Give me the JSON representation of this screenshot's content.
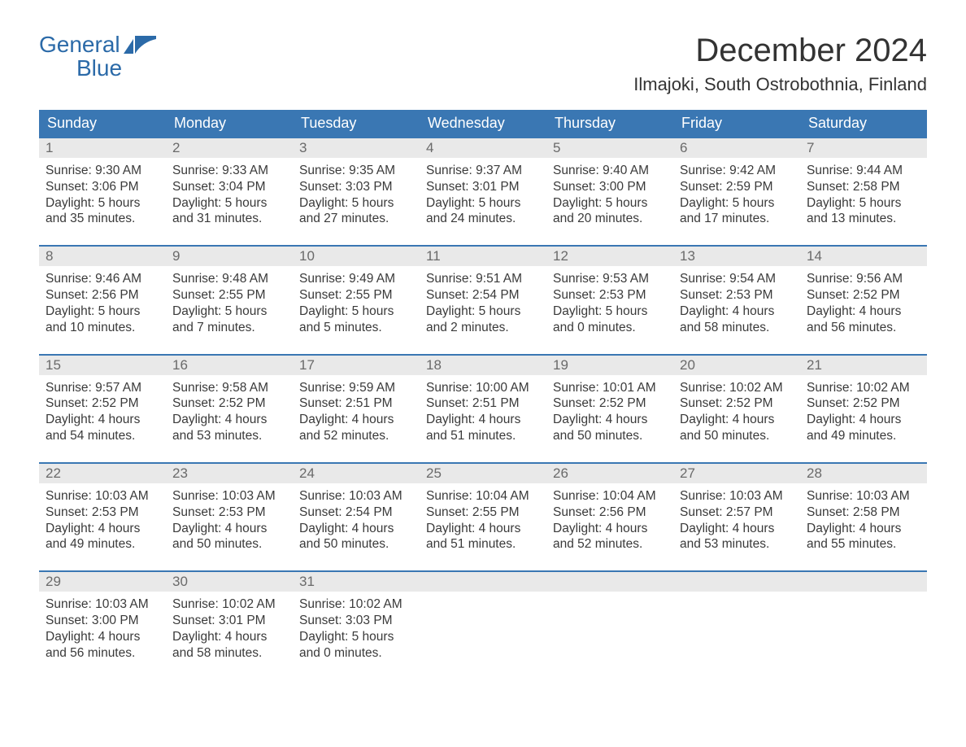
{
  "brand": {
    "word1": "General",
    "word2": "Blue",
    "color": "#2b6aa8"
  },
  "header": {
    "month_title": "December 2024",
    "location": "Ilmajoki, South Ostrobothnia, Finland"
  },
  "calendar": {
    "header_bg": "#3a77b3",
    "header_fg": "#ffffff",
    "daynum_bg": "#e9e9e9",
    "daynum_fg": "#6a6a6a",
    "border_color": "#3a77b3",
    "text_color": "#3a3a3a",
    "day_names": [
      "Sunday",
      "Monday",
      "Tuesday",
      "Wednesday",
      "Thursday",
      "Friday",
      "Saturday"
    ],
    "weeks": [
      {
        "days": [
          {
            "n": "1",
            "sunrise": "9:30 AM",
            "sunset": "3:06 PM",
            "dl1": "5 hours",
            "dl2": "and 35 minutes."
          },
          {
            "n": "2",
            "sunrise": "9:33 AM",
            "sunset": "3:04 PM",
            "dl1": "5 hours",
            "dl2": "and 31 minutes."
          },
          {
            "n": "3",
            "sunrise": "9:35 AM",
            "sunset": "3:03 PM",
            "dl1": "5 hours",
            "dl2": "and 27 minutes."
          },
          {
            "n": "4",
            "sunrise": "9:37 AM",
            "sunset": "3:01 PM",
            "dl1": "5 hours",
            "dl2": "and 24 minutes."
          },
          {
            "n": "5",
            "sunrise": "9:40 AM",
            "sunset": "3:00 PM",
            "dl1": "5 hours",
            "dl2": "and 20 minutes."
          },
          {
            "n": "6",
            "sunrise": "9:42 AM",
            "sunset": "2:59 PM",
            "dl1": "5 hours",
            "dl2": "and 17 minutes."
          },
          {
            "n": "7",
            "sunrise": "9:44 AM",
            "sunset": "2:58 PM",
            "dl1": "5 hours",
            "dl2": "and 13 minutes."
          }
        ]
      },
      {
        "days": [
          {
            "n": "8",
            "sunrise": "9:46 AM",
            "sunset": "2:56 PM",
            "dl1": "5 hours",
            "dl2": "and 10 minutes."
          },
          {
            "n": "9",
            "sunrise": "9:48 AM",
            "sunset": "2:55 PM",
            "dl1": "5 hours",
            "dl2": "and 7 minutes."
          },
          {
            "n": "10",
            "sunrise": "9:49 AM",
            "sunset": "2:55 PM",
            "dl1": "5 hours",
            "dl2": "and 5 minutes."
          },
          {
            "n": "11",
            "sunrise": "9:51 AM",
            "sunset": "2:54 PM",
            "dl1": "5 hours",
            "dl2": "and 2 minutes."
          },
          {
            "n": "12",
            "sunrise": "9:53 AM",
            "sunset": "2:53 PM",
            "dl1": "5 hours",
            "dl2": "and 0 minutes."
          },
          {
            "n": "13",
            "sunrise": "9:54 AM",
            "sunset": "2:53 PM",
            "dl1": "4 hours",
            "dl2": "and 58 minutes."
          },
          {
            "n": "14",
            "sunrise": "9:56 AM",
            "sunset": "2:52 PM",
            "dl1": "4 hours",
            "dl2": "and 56 minutes."
          }
        ]
      },
      {
        "days": [
          {
            "n": "15",
            "sunrise": "9:57 AM",
            "sunset": "2:52 PM",
            "dl1": "4 hours",
            "dl2": "and 54 minutes."
          },
          {
            "n": "16",
            "sunrise": "9:58 AM",
            "sunset": "2:52 PM",
            "dl1": "4 hours",
            "dl2": "and 53 minutes."
          },
          {
            "n": "17",
            "sunrise": "9:59 AM",
            "sunset": "2:51 PM",
            "dl1": "4 hours",
            "dl2": "and 52 minutes."
          },
          {
            "n": "18",
            "sunrise": "10:00 AM",
            "sunset": "2:51 PM",
            "dl1": "4 hours",
            "dl2": "and 51 minutes."
          },
          {
            "n": "19",
            "sunrise": "10:01 AM",
            "sunset": "2:52 PM",
            "dl1": "4 hours",
            "dl2": "and 50 minutes."
          },
          {
            "n": "20",
            "sunrise": "10:02 AM",
            "sunset": "2:52 PM",
            "dl1": "4 hours",
            "dl2": "and 50 minutes."
          },
          {
            "n": "21",
            "sunrise": "10:02 AM",
            "sunset": "2:52 PM",
            "dl1": "4 hours",
            "dl2": "and 49 minutes."
          }
        ]
      },
      {
        "days": [
          {
            "n": "22",
            "sunrise": "10:03 AM",
            "sunset": "2:53 PM",
            "dl1": "4 hours",
            "dl2": "and 49 minutes."
          },
          {
            "n": "23",
            "sunrise": "10:03 AM",
            "sunset": "2:53 PM",
            "dl1": "4 hours",
            "dl2": "and 50 minutes."
          },
          {
            "n": "24",
            "sunrise": "10:03 AM",
            "sunset": "2:54 PM",
            "dl1": "4 hours",
            "dl2": "and 50 minutes."
          },
          {
            "n": "25",
            "sunrise": "10:04 AM",
            "sunset": "2:55 PM",
            "dl1": "4 hours",
            "dl2": "and 51 minutes."
          },
          {
            "n": "26",
            "sunrise": "10:04 AM",
            "sunset": "2:56 PM",
            "dl1": "4 hours",
            "dl2": "and 52 minutes."
          },
          {
            "n": "27",
            "sunrise": "10:03 AM",
            "sunset": "2:57 PM",
            "dl1": "4 hours",
            "dl2": "and 53 minutes."
          },
          {
            "n": "28",
            "sunrise": "10:03 AM",
            "sunset": "2:58 PM",
            "dl1": "4 hours",
            "dl2": "and 55 minutes."
          }
        ]
      },
      {
        "days": [
          {
            "n": "29",
            "sunrise": "10:03 AM",
            "sunset": "3:00 PM",
            "dl1": "4 hours",
            "dl2": "and 56 minutes."
          },
          {
            "n": "30",
            "sunrise": "10:02 AM",
            "sunset": "3:01 PM",
            "dl1": "4 hours",
            "dl2": "and 58 minutes."
          },
          {
            "n": "31",
            "sunrise": "10:02 AM",
            "sunset": "3:03 PM",
            "dl1": "5 hours",
            "dl2": "and 0 minutes."
          },
          null,
          null,
          null,
          null
        ]
      }
    ],
    "labels": {
      "sunrise_prefix": "Sunrise: ",
      "sunset_prefix": "Sunset: ",
      "daylight_prefix": "Daylight: "
    }
  }
}
